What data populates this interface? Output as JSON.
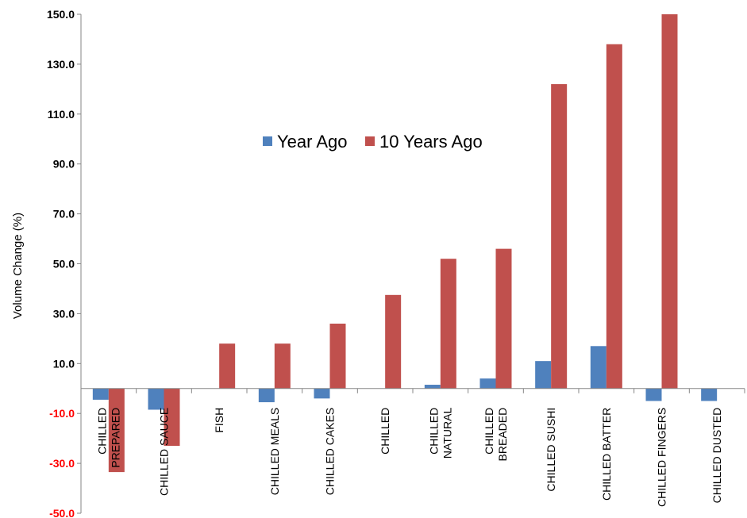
{
  "chart_data": {
    "type": "bar",
    "title": "",
    "xlabel": "",
    "ylabel": "Volume Change (%)",
    "ylim": [
      -50,
      150
    ],
    "yticks": [
      "150.0",
      "130.0",
      "110.0",
      "90.0",
      "70.0",
      "50.0",
      "30.0",
      "10.0",
      "-10.0",
      "-30.0",
      "-50.0"
    ],
    "ytick_values": [
      150,
      130,
      110,
      90,
      70,
      50,
      30,
      10,
      -10,
      -30,
      -50
    ],
    "categories": [
      [
        "CHILLED",
        "PREPARED"
      ],
      [
        "CHILLED SAUCE"
      ],
      [
        "FISH"
      ],
      [
        "CHILLED MEALS"
      ],
      [
        "CHILLED CAKES"
      ],
      [
        "CHILLED"
      ],
      [
        "CHILLED",
        "NATURAL"
      ],
      [
        "CHILLED",
        "BREADED"
      ],
      [
        "CHILLED SUSHI"
      ],
      [
        "CHILLED BATTER"
      ],
      [
        "CHILLED FINGERS"
      ],
      [
        "CHILLED DUSTED"
      ]
    ],
    "series": [
      {
        "name": "Year Ago",
        "color": "#4F81BD",
        "values": [
          -4.5,
          -8.5,
          0,
          -5.5,
          -4.0,
          0,
          1.5,
          4.0,
          11.0,
          17.0,
          -5.0,
          -5.0
        ]
      },
      {
        "name": "10 Years Ago",
        "color": "#C0504D",
        "values": [
          -33.5,
          -23.0,
          18.0,
          18.0,
          26.0,
          37.5,
          52.0,
          56.0,
          122.0,
          138.0,
          150.0,
          0
        ]
      }
    ],
    "grid": false,
    "legend_position": "top-center",
    "ytick_colors": {
      "positive": "#000000",
      "negative": "#FF0000"
    }
  }
}
